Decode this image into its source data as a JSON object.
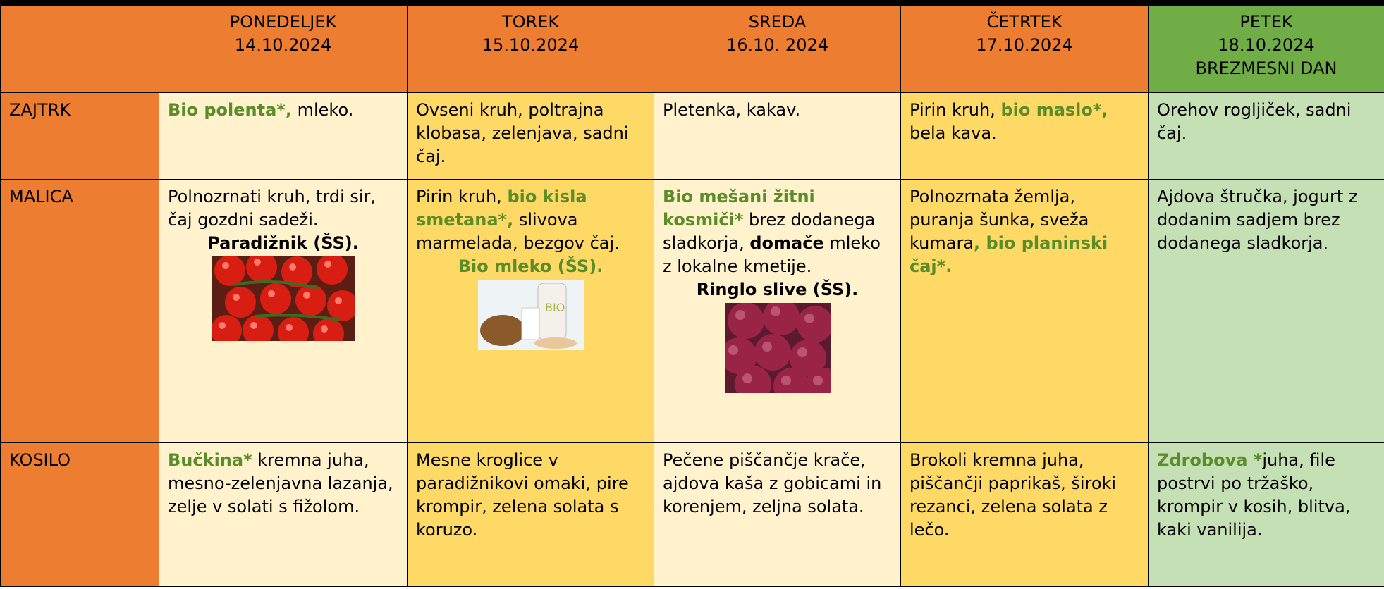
{
  "header": {
    "columns": [
      {
        "lines": [
          "PONEDELJEK",
          "14.10.2024"
        ]
      },
      {
        "lines": [
          "TOREK",
          "15.10.2024"
        ]
      },
      {
        "lines": [
          "SREDA",
          "16.10. 2024"
        ]
      },
      {
        "lines": [
          "ČETRTEK",
          "17.10.2024"
        ]
      },
      {
        "lines": [
          "PETEK",
          "18.10.2024",
          "BREZMESNI DAN"
        ]
      }
    ]
  },
  "rows": [
    {
      "label": "ZAJTRK",
      "cells": [
        [
          {
            "runs": [
              {
                "text": "Bio polenta*,",
                "bold": true,
                "color": "#5b8c2a"
              },
              {
                "text": " mleko."
              }
            ]
          }
        ],
        [
          {
            "runs": [
              {
                "text": "Ovseni kruh, poltrajna klobasa, zelenjava, sadni čaj."
              }
            ]
          }
        ],
        [
          {
            "runs": [
              {
                "text": "Pletenka, kakav."
              }
            ]
          }
        ],
        [
          {
            "runs": [
              {
                "text": "Pirin kruh, "
              },
              {
                "text": "bio maslo*,",
                "bold": true,
                "color": "#5b8c2a"
              },
              {
                "text": " bela kava."
              }
            ]
          }
        ],
        [
          {
            "runs": [
              {
                "text": "Orehov rogljiček, sadni čaj."
              }
            ]
          }
        ]
      ]
    },
    {
      "label": "MALICA",
      "cells": [
        [
          {
            "runs": [
              {
                "text": "Polnozrnati kruh, trdi sir, čaj  gozdni sadeži."
              }
            ]
          },
          {
            "center": true,
            "runs": [
              {
                "text": "Paradižnik (ŠS).",
                "bold": true
              }
            ]
          }
        ],
        [
          {
            "runs": [
              {
                "text": "Pirin kruh, "
              },
              {
                "text": "bio kisla smetana*,",
                "bold": true,
                "color": "#5b8c2a"
              },
              {
                "text": " slivova marmelada, bezgov čaj."
              }
            ]
          },
          {
            "center": true,
            "runs": [
              {
                "text": "Bio mleko (ŠS).",
                "bold": true,
                "color": "#5b8c2a"
              }
            ]
          }
        ],
        [
          {
            "runs": [
              {
                "text": "Bio mešani žitni kosmiči*",
                "bold": true,
                "color": "#5b8c2a"
              },
              {
                "text": " brez dodanega sladkorja, "
              },
              {
                "text": "domače",
                "bold": true
              },
              {
                "text": " mleko z lokalne kmetije."
              }
            ]
          },
          {
            "center": true,
            "runs": [
              {
                "text": "Ringlo slive (ŠS).",
                "bold": true
              }
            ]
          }
        ],
        [
          {
            "runs": [
              {
                "text": "Polnozrnata žemlja, puranja šunka, sveža kumara"
              },
              {
                "text": ", bio planinski čaj*.",
                "bold": true,
                "color": "#5b8c2a"
              }
            ]
          }
        ],
        [
          {
            "runs": [
              {
                "text": "Ajdova štručka, jogurt z dodanim sadjem brez dodanega sladkorja."
              }
            ]
          }
        ]
      ]
    },
    {
      "label": "KOSILO",
      "cells": [
        [
          {
            "runs": [
              {
                "text": "Bučkina*",
                "bold": true,
                "color": "#5b8c2a"
              },
              {
                "text": " kremna juha, mesno-zelenjavna lazanja, zelje v solati s fižolom."
              }
            ]
          }
        ],
        [
          {
            "runs": [
              {
                "text": "Mesne kroglice v paradižnikovi omaki, pire krompir, zelena solata s koruzo."
              }
            ]
          }
        ],
        [
          {
            "runs": [
              {
                "text": "Pečene piščančje krače, ajdova kaša z gobicami in korenjem, zeljna solata."
              }
            ]
          }
        ],
        [
          {
            "runs": [
              {
                "text": "Brokoli kremna juha, piščančji paprikaš, široki rezanci, zelena solata z lečo."
              }
            ]
          }
        ],
        [
          {
            "runs": [
              {
                "text": "Zdrobova *",
                "bold": true,
                "color": "#5b8c2a"
              },
              {
                "text": "juha, file postrvi po tržaško, krompir v kosih, blitva, kaki vanilija."
              }
            ]
          }
        ]
      ]
    }
  ]
}
